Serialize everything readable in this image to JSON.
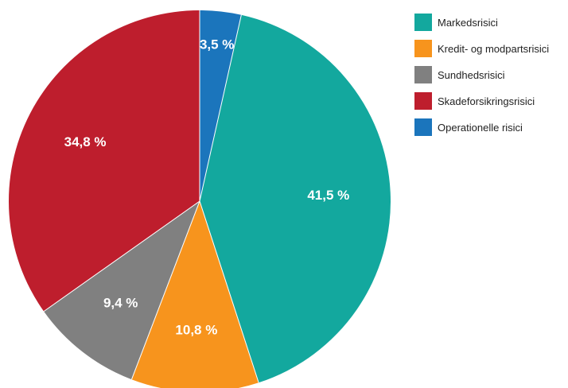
{
  "chart_data": {
    "type": "pie",
    "slices": [
      {
        "label": "Markedsrisici",
        "value": 41.5,
        "value_label": "41,5 %",
        "color": "#13a89e"
      },
      {
        "label": "Kredit- og modpartsrisici",
        "value": 10.8,
        "value_label": "10,8 %",
        "color": "#f7941d"
      },
      {
        "label": "Sundhedsrisici",
        "value": 9.4,
        "value_label": "9,4 %",
        "color": "#808080"
      },
      {
        "label": "Skadeforsikringsrisici",
        "value": 34.8,
        "value_label": "34,8 %",
        "color": "#be1e2d"
      },
      {
        "label": "Operationelle risici",
        "value": 3.5,
        "value_label": "3,5 %",
        "color": "#1b75bc"
      }
    ],
    "slice_order": "clockwise from top, beginning with Operationelle risici",
    "legend_position": "right"
  }
}
